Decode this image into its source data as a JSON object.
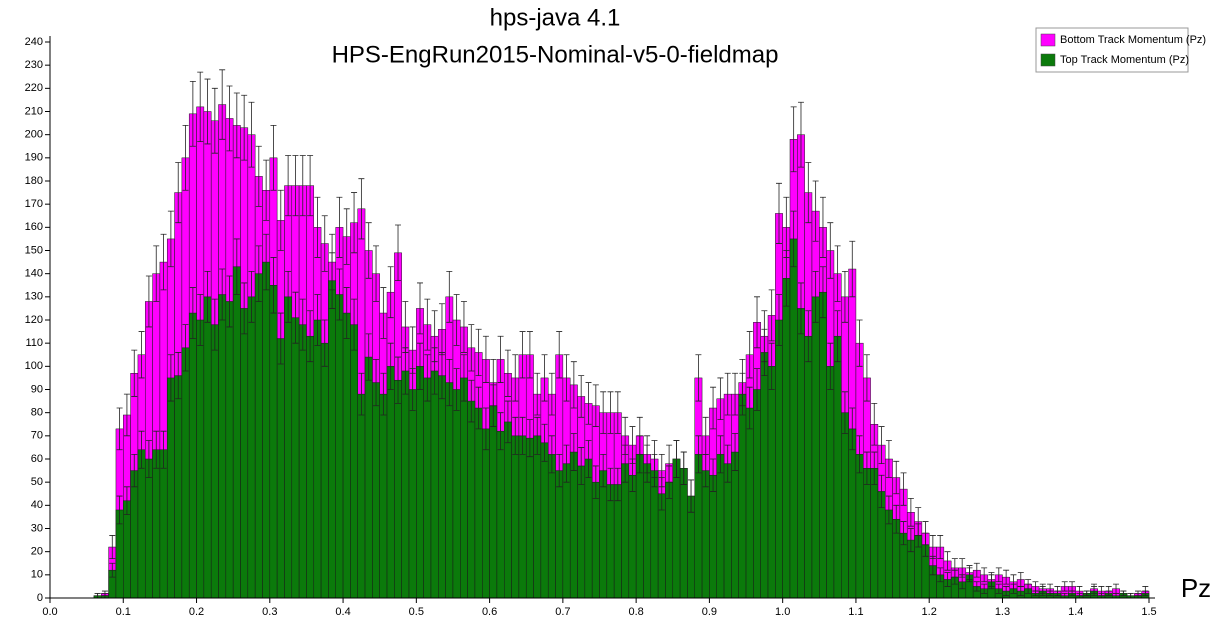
{
  "chart_data": {
    "type": "histogram",
    "title": "hps-java 4.1",
    "subtitle": "HPS-EngRun2015-Nominal-v5-0-fieldmap",
    "x_label": "Pz",
    "legend": "top-right",
    "bins": [
      0,
      0.01,
      0.02,
      0.03,
      0.04,
      0.05,
      0.06,
      0.07,
      0.08,
      0.09,
      0.1,
      0.11,
      0.12,
      0.13,
      0.14,
      0.15,
      0.16,
      0.17,
      0.18,
      0.19,
      0.2,
      0.21,
      0.22,
      0.23,
      0.24,
      0.25,
      0.26,
      0.27,
      0.28,
      0.29,
      0.3,
      0.31,
      0.32,
      0.33,
      0.34,
      0.35,
      0.36,
      0.37,
      0.38,
      0.39,
      0.4,
      0.41,
      0.42,
      0.43,
      0.44,
      0.45,
      0.46,
      0.47,
      0.48,
      0.49,
      0.5,
      0.51,
      0.52,
      0.53,
      0.54,
      0.55,
      0.56,
      0.57,
      0.58,
      0.59,
      0.6,
      0.61,
      0.62,
      0.63,
      0.64,
      0.65,
      0.66,
      0.67,
      0.68,
      0.69,
      0.7,
      0.71,
      0.72,
      0.73,
      0.74,
      0.75,
      0.76,
      0.77,
      0.78,
      0.79,
      0.8,
      0.81,
      0.82,
      0.83,
      0.84,
      0.85,
      0.86,
      0.87,
      0.88,
      0.89,
      0.9,
      0.91,
      0.92,
      0.93,
      0.94,
      0.95,
      0.96,
      0.97,
      0.98,
      0.99,
      1,
      1.01,
      1.02,
      1.03,
      1.04,
      1.05,
      1.06,
      1.07,
      1.08,
      1.09,
      1.1,
      1.11,
      1.12,
      1.13,
      1.14,
      1.15,
      1.16,
      1.17,
      1.18,
      1.19,
      1.2,
      1.21,
      1.22,
      1.23,
      1.24,
      1.25,
      1.26,
      1.27,
      1.28,
      1.29,
      1.3,
      1.31,
      1.32,
      1.33,
      1.34,
      1.35,
      1.36,
      1.37,
      1.38,
      1.39,
      1.4,
      1.41,
      1.42,
      1.43,
      1.44,
      1.45,
      1.46,
      1.47,
      1.48,
      1.49,
      1.5
    ],
    "series": [
      {
        "name": "Bottom Track Momentum (Pz)",
        "color": "#ff00ff",
        "values": [
          0,
          0,
          0,
          0,
          0,
          0,
          1,
          2,
          22,
          73,
          79,
          97,
          105,
          128,
          140,
          145,
          155,
          175,
          190,
          209,
          212,
          210,
          206,
          213,
          207,
          204,
          203,
          200,
          182,
          176,
          190,
          163,
          178,
          178,
          178,
          178,
          160,
          153,
          145,
          160,
          156,
          162,
          168,
          150,
          140,
          123,
          132,
          149,
          117,
          107,
          125,
          118,
          113,
          116,
          130,
          120,
          117,
          108,
          106,
          103,
          93,
          103,
          97,
          95,
          105,
          105,
          88,
          95,
          88,
          105,
          95,
          92,
          87,
          84,
          83,
          80,
          80,
          80,
          70,
          66,
          70,
          62,
          60,
          55,
          58,
          60,
          56,
          44,
          95,
          70,
          82,
          86,
          88,
          88,
          93,
          105,
          119,
          113,
          122,
          166,
          160,
          198,
          200,
          175,
          167,
          160,
          150,
          140,
          130,
          142,
          110,
          95,
          75,
          66,
          60,
          52,
          47,
          37,
          33,
          28,
          22,
          22,
          16,
          13,
          13,
          11,
          12,
          10,
          8,
          10,
          9,
          7,
          8,
          6,
          5,
          4,
          4,
          3,
          5,
          5,
          3,
          2,
          4,
          3,
          3,
          4,
          2,
          1,
          2,
          3
        ],
        "errors": [
          0,
          0,
          0,
          0,
          0,
          0,
          1,
          1,
          5,
          9,
          9,
          10,
          10,
          11,
          12,
          12,
          12,
          13,
          14,
          14,
          15,
          14,
          14,
          15,
          14,
          14,
          14,
          14,
          13,
          13,
          14,
          13,
          13,
          13,
          13,
          13,
          13,
          12,
          12,
          13,
          12,
          13,
          13,
          12,
          12,
          11,
          11,
          12,
          11,
          10,
          11,
          11,
          11,
          11,
          11,
          11,
          11,
          10,
          10,
          10,
          10,
          10,
          10,
          10,
          10,
          10,
          9,
          10,
          9,
          10,
          10,
          10,
          9,
          9,
          9,
          9,
          9,
          9,
          8,
          8,
          8,
          8,
          8,
          7,
          8,
          8,
          7,
          7,
          10,
          8,
          9,
          9,
          9,
          9,
          10,
          10,
          11,
          11,
          11,
          13,
          13,
          14,
          14,
          13,
          13,
          13,
          12,
          12,
          11,
          12,
          10,
          10,
          9,
          8,
          8,
          7,
          7,
          6,
          6,
          5,
          5,
          5,
          4,
          4,
          4,
          3,
          3,
          3,
          3,
          3,
          3,
          3,
          3,
          2,
          2,
          2,
          2,
          2,
          2,
          2,
          2,
          1,
          2,
          2,
          2,
          2,
          1,
          1,
          1,
          2
        ]
      },
      {
        "name": "Top Track Momentum (Pz)",
        "color": "#0b7a0b",
        "values": [
          0,
          0,
          0,
          0,
          0,
          0,
          1,
          1,
          12,
          38,
          42,
          55,
          64,
          60,
          64,
          64,
          95,
          96,
          108,
          123,
          120,
          130,
          118,
          131,
          128,
          143,
          125,
          130,
          140,
          145,
          135,
          112,
          130,
          121,
          118,
          113,
          120,
          110,
          137,
          131,
          123,
          118,
          88,
          104,
          93,
          88,
          100,
          94,
          98,
          90,
          100,
          95,
          98,
          96,
          93,
          90,
          95,
          85,
          82,
          73,
          83,
          72,
          76,
          70,
          70,
          69,
          70,
          67,
          62,
          55,
          58,
          63,
          57,
          60,
          50,
          55,
          49,
          49,
          58,
          53,
          62,
          58,
          55,
          45,
          50,
          60,
          56,
          44,
          62,
          55,
          53,
          62,
          58,
          63,
          88,
          82,
          90,
          106,
          100,
          120,
          138,
          155,
          125,
          113,
          130,
          132,
          100,
          113,
          80,
          73,
          62,
          56,
          56,
          46,
          38,
          34,
          28,
          25,
          27,
          23,
          14,
          10,
          8,
          9,
          7,
          10,
          5,
          4,
          7,
          4,
          3,
          4,
          3,
          4,
          2,
          3,
          2,
          2,
          1,
          2,
          1,
          2,
          3,
          1,
          2,
          1,
          2,
          1,
          1,
          2
        ],
        "errors": [
          0,
          0,
          0,
          0,
          0,
          0,
          1,
          1,
          3,
          6,
          6,
          7,
          8,
          8,
          8,
          8,
          10,
          10,
          10,
          11,
          11,
          11,
          11,
          11,
          11,
          12,
          11,
          11,
          12,
          12,
          12,
          11,
          11,
          11,
          11,
          11,
          11,
          10,
          12,
          11,
          11,
          11,
          9,
          10,
          10,
          9,
          10,
          10,
          10,
          9,
          10,
          10,
          10,
          10,
          10,
          9,
          10,
          9,
          9,
          9,
          9,
          8,
          9,
          8,
          8,
          8,
          8,
          8,
          8,
          7,
          8,
          8,
          8,
          8,
          7,
          7,
          7,
          7,
          8,
          7,
          8,
          8,
          7,
          7,
          7,
          8,
          7,
          7,
          8,
          7,
          7,
          8,
          8,
          8,
          9,
          9,
          9,
          10,
          10,
          11,
          12,
          12,
          11,
          11,
          11,
          11,
          10,
          11,
          9,
          9,
          8,
          7,
          7,
          7,
          6,
          6,
          5,
          5,
          5,
          5,
          4,
          3,
          3,
          3,
          3,
          3,
          2,
          2,
          3,
          2,
          2,
          2,
          2,
          2,
          1,
          2,
          1,
          1,
          1,
          1,
          1,
          1,
          2,
          1,
          1,
          1,
          1,
          1,
          1,
          1
        ]
      }
    ],
    "xlim": [
      0,
      1.5
    ],
    "xticks": [
      {
        "value": 0,
        "label": "0.0"
      },
      0.1,
      0.2,
      0.3,
      0.4,
      0.5,
      0.6,
      0.7,
      0.8,
      0.9,
      {
        "value": 1,
        "label": "1.0"
      },
      1.1,
      1.2,
      1.3,
      1.4,
      1.5
    ],
    "ylim": [
      0,
      240
    ],
    "yticks": [
      0,
      10,
      20,
      30,
      40,
      50,
      60,
      70,
      80,
      90,
      100,
      110,
      120,
      130,
      140,
      150,
      160,
      170,
      180,
      190,
      200,
      210,
      220,
      230,
      240
    ]
  }
}
